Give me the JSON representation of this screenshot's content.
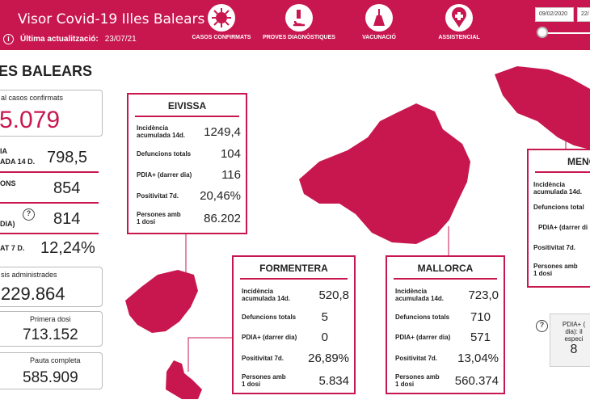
{
  "header": {
    "title": "Visor Covid-19 Illes Balears",
    "last_update_label": "Última actualització:",
    "last_update_value": "23/07/21",
    "nav": [
      "CASOS CONFIRMATS",
      "PROVES DIAGNÒSTIQUES",
      "VACUNACIÓ",
      "ASSISTENCIAL"
    ],
    "date_from": "09/02/2020",
    "date_to": "22/"
  },
  "left_panel": {
    "heading": "ES BALEARS",
    "total_label": "al casos confirmats",
    "total_value": "5.079",
    "inc_label_1": "IA",
    "inc_label_2": "ADA 14 D.",
    "inc_value": "798,5",
    "def_label": "ONS",
    "def_value": "854",
    "pdia_label": "DIA)",
    "pdia_value": "814",
    "pos_label": "AT 7 D.",
    "pos_value": "12,24%",
    "doses_label": "sis administrades",
    "doses_value": "229.864",
    "first_label": "Primera dosi",
    "first_value": "713.152",
    "full_label": "Pauta completa",
    "full_value": "585.909"
  },
  "islands": {
    "eivissa": {
      "name": "EIVISSA",
      "inc": "1249,4",
      "def": "104",
      "pdia": "116",
      "pos": "20,46%",
      "persones": "86.202"
    },
    "formentera": {
      "name": "FORMENTERA",
      "inc": "520,8",
      "def": "5",
      "pdia": "0",
      "pos": "26,89%",
      "persones": "5.834"
    },
    "mallorca": {
      "name": "MALLORCA",
      "inc": "723,0",
      "def": "710",
      "pdia": "571",
      "pos": "13,04%",
      "persones": "560.374"
    },
    "menorca": {
      "name": "MENO"
    }
  },
  "labels": {
    "inc_1": "Incidència",
    "inc_2": "acumulada 14d.",
    "def": "Defuncions totals",
    "pdia": "PDIA+ (darrer dia)",
    "pos": "Positivitat 7d.",
    "persones_1": "Persones amb",
    "persones_2": "1 dosi",
    "menorca_def": "Defuncions total",
    "menorca_pdia": "PDIA+ (darrer di"
  },
  "pdia_note": {
    "line1": "PDIA+ (",
    "line2": "dia): il",
    "line3": "especi",
    "value": "8"
  },
  "colors": {
    "accent": "#c8174f"
  }
}
